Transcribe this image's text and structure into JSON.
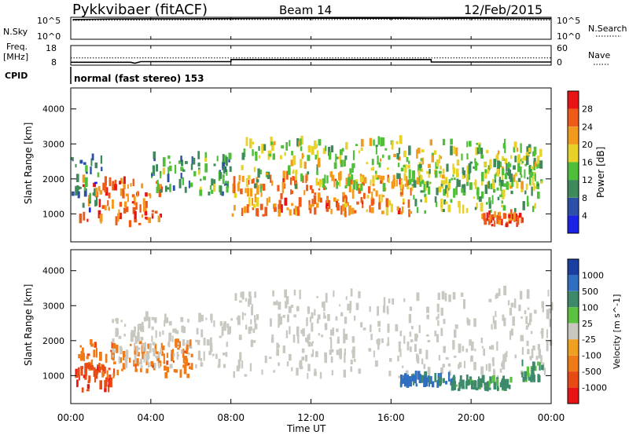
{
  "header": {
    "station": "Pykkvibaer (fitACF)",
    "beam": "Beam 14",
    "date": "12/Feb/2015"
  },
  "noise_panel": {
    "left_label": "N.Sky",
    "right_label": "N.Search",
    "left_ticks": [
      "10^5",
      "10^0"
    ],
    "right_ticks": [
      "10^5",
      "10^0"
    ]
  },
  "freq_panel": {
    "left_label_1": "Freq.",
    "left_label_2": "[MHz]",
    "right_label": "Nave",
    "left_ticks": [
      "18",
      "8"
    ],
    "right_ticks": [
      "60",
      "0"
    ]
  },
  "cpid": {
    "label": "CPID",
    "value": "normal (fast stereo) 153"
  },
  "x_axis": {
    "label": "Time UT",
    "ticks": [
      "00:00",
      "04:00",
      "08:00",
      "12:00",
      "16:00",
      "20:00",
      "00:00"
    ]
  },
  "colors": {
    "power_scale": [
      "#1a22e6",
      "#2c4fa8",
      "#3e8a5a",
      "#4fbf3a",
      "#e8d22a",
      "#f29a1e",
      "#ee5a18",
      "#e81414"
    ],
    "velocity_scale": [
      "#1a3fa0",
      "#2f6ec0",
      "#3d8a6a",
      "#5cc040",
      "#c8c8c0",
      "#f0a020",
      "#ee7a18",
      "#e84a14",
      "#e81414"
    ],
    "ground_scatter": "#c8c8c0"
  },
  "chart_data": [
    {
      "type": "line",
      "title": "",
      "ylabel": "N.Sky",
      "y2label": "N.Search",
      "yscale": "log",
      "ylim": [
        1,
        100000
      ],
      "xlim": [
        "00:00",
        "24:00"
      ],
      "series": [
        {
          "name": "N.Sky",
          "x": [
            0.1,
            2,
            4,
            6,
            8,
            10,
            12,
            14,
            16,
            18,
            20,
            22,
            24
          ],
          "values": [
            30000,
            40000,
            45000,
            45000,
            50000,
            55000,
            60000,
            60000,
            60000,
            55000,
            60000,
            55000,
            50000
          ]
        },
        {
          "name": "N.Search",
          "x": [
            0.1,
            4,
            8,
            12,
            16,
            20,
            24
          ],
          "values": [
            20000,
            25000,
            30000,
            30000,
            35000,
            30000,
            25000
          ]
        }
      ]
    },
    {
      "type": "line",
      "title": "",
      "ylabel": "Freq. [MHz]",
      "y2label": "Nave",
      "ylim": [
        8,
        18
      ],
      "y2lim": [
        0,
        60
      ],
      "xlim": [
        "00:00",
        "24:00"
      ],
      "series": [
        {
          "name": "Freq.",
          "x": [
            0,
            3,
            3.2,
            3.5,
            8,
            8.01,
            18,
            18.01,
            24
          ],
          "values": [
            9.5,
            9.5,
            9,
            9.8,
            9.8,
            10.9,
            10.9,
            9.6,
            9.6
          ]
        },
        {
          "name": "Nave",
          "x": [
            0,
            24
          ],
          "values": [
            22,
            22
          ]
        }
      ]
    },
    {
      "type": "heatmap",
      "title": "",
      "ylabel": "Slant Range [km]",
      "xlabel": "Time UT",
      "ylim": [
        200,
        4600
      ],
      "y_ticks": [
        "1000",
        "2000",
        "3000",
        "4000"
      ],
      "colorbar_label": "Power [dB]",
      "colorbar_ticks": [
        "4",
        "8",
        "12",
        "16",
        "20",
        "24",
        "28"
      ],
      "regions": [
        {
          "t": [
            0.4,
            4.5
          ],
          "r": [
            600,
            1900
          ],
          "level": 26
        },
        {
          "t": [
            0,
            1.5
          ],
          "r": [
            1000,
            2600
          ],
          "level": 8
        },
        {
          "t": [
            4,
            8
          ],
          "r": [
            1500,
            2600
          ],
          "level": 12
        },
        {
          "t": [
            8,
            17
          ],
          "r": [
            900,
            2000
          ],
          "level": 24
        },
        {
          "t": [
            8.5,
            23.5
          ],
          "r": [
            1600,
            3000
          ],
          "level": 16
        },
        {
          "t": [
            17,
            23.5
          ],
          "r": [
            1000,
            2400
          ],
          "level": 14
        },
        {
          "t": [
            20.5,
            22.5
          ],
          "r": [
            600,
            900
          ],
          "level": 26
        }
      ]
    },
    {
      "type": "heatmap",
      "title": "",
      "ylabel": "Slant Range [km]",
      "xlabel": "Time UT",
      "ylim": [
        200,
        4600
      ],
      "y_ticks": [
        "1000",
        "2000",
        "3000",
        "4000"
      ],
      "colorbar_label": "Velocity [m s^-1]",
      "colorbar_ticks": [
        "1000",
        "500",
        "100",
        "25",
        "-25",
        "-100",
        "-500",
        "-1000"
      ],
      "regions": [
        {
          "t": [
            0.3,
            6
          ],
          "r": [
            900,
            1900
          ],
          "level": -100
        },
        {
          "t": [
            0.2,
            2
          ],
          "r": [
            500,
            1200
          ],
          "level": -500
        },
        {
          "t": [
            2,
            8
          ],
          "r": [
            1200,
            2600
          ],
          "level": 0
        },
        {
          "t": [
            8,
            24
          ],
          "r": [
            900,
            3300
          ],
          "level": 0
        },
        {
          "t": [
            16.3,
            19
          ],
          "r": [
            650,
            900
          ],
          "level": 300
        },
        {
          "t": [
            19,
            22
          ],
          "r": [
            550,
            800
          ],
          "level": 80
        },
        {
          "t": [
            22.5,
            23.5
          ],
          "r": [
            800,
            1300
          ],
          "level": 80
        }
      ]
    }
  ]
}
